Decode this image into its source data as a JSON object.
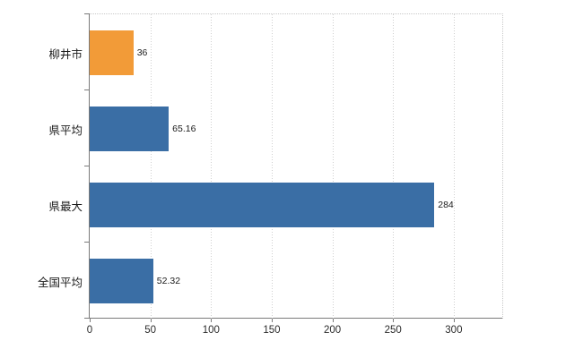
{
  "chart_data": {
    "type": "bar",
    "orientation": "horizontal",
    "title": "",
    "xlabel": "",
    "ylabel": "",
    "categories": [
      "柳井市",
      "県平均",
      "県最大",
      "全国平均"
    ],
    "values": [
      36,
      65.16,
      284,
      52.32
    ],
    "value_labels": [
      "36",
      "65.16",
      "284",
      "52.32"
    ],
    "bar_colors": [
      "#f29b38",
      "#3a6ea5",
      "#3a6ea5",
      "#3a6ea5"
    ],
    "x_ticks": [
      0,
      50,
      100,
      150,
      200,
      250,
      300
    ],
    "x_tick_labels": [
      "0",
      "50",
      "100",
      "150",
      "200",
      "250",
      "300"
    ],
    "xlim": [
      0,
      340
    ],
    "grid": "vertical-dotted",
    "legend": "none",
    "background": "#ffffff"
  }
}
